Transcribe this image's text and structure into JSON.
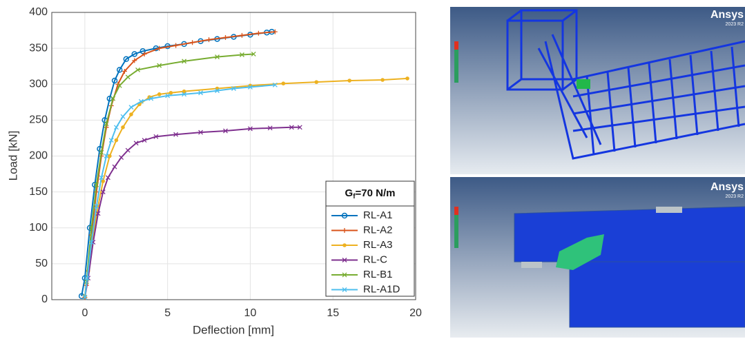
{
  "chart_data": {
    "type": "line",
    "x_label": "Deflection [mm]",
    "y_label": "Load [kN]",
    "xlim": [
      -2,
      20
    ],
    "xticks": [
      0,
      5,
      10,
      15,
      20
    ],
    "ylim": [
      0,
      400
    ],
    "yticks": [
      0,
      50,
      100,
      150,
      200,
      250,
      300,
      350,
      400
    ],
    "grid": true,
    "legend_position": "lower right",
    "legend_title": {
      "main": "G",
      "sub": "f",
      "rest": "=70 N/m"
    },
    "series": [
      {
        "name": "RL-A1",
        "color": "#0072bd",
        "marker": "circle",
        "x": [
          -0.2,
          0.0,
          0.3,
          0.6,
          0.9,
          1.2,
          1.5,
          1.8,
          2.1,
          2.5,
          3.0,
          3.5,
          4.3,
          5,
          6,
          7,
          8,
          9,
          10,
          11,
          11.3
        ],
        "values": [
          5,
          30,
          100,
          160,
          210,
          250,
          280,
          305,
          320,
          335,
          342,
          346,
          350,
          353,
          356,
          360,
          363,
          366,
          369,
          372,
          373
        ]
      },
      {
        "name": "RL-A2",
        "color": "#d95319",
        "marker": "plus",
        "x": [
          0,
          0.1,
          0.4,
          0.7,
          1.0,
          1.3,
          1.6,
          2.0,
          2.4,
          3.0,
          3.6,
          4.5,
          5.5,
          6.5,
          7.5,
          8.5,
          9.5,
          10.5,
          11.5
        ],
        "values": [
          3,
          20,
          90,
          150,
          200,
          240,
          270,
          300,
          318,
          333,
          342,
          350,
          354,
          358,
          362,
          365,
          368,
          371,
          373
        ]
      },
      {
        "name": "RL-A3",
        "color": "#edb120",
        "marker": "dot",
        "x": [
          0,
          0.2,
          0.5,
          0.8,
          1.1,
          1.5,
          1.9,
          2.3,
          2.8,
          3.3,
          3.9,
          4.5,
          5.2,
          6,
          8,
          10,
          12,
          14,
          16,
          18,
          19.5
        ],
        "values": [
          5,
          40,
          90,
          130,
          165,
          200,
          222,
          240,
          258,
          272,
          282,
          286,
          288,
          290,
          294,
          298,
          301,
          303,
          305,
          306,
          308
        ]
      },
      {
        "name": "RL-C",
        "color": "#7e2f8e",
        "marker": "x",
        "x": [
          0,
          0.2,
          0.5,
          0.8,
          1.1,
          1.4,
          1.8,
          2.2,
          2.6,
          3.1,
          3.6,
          4.3,
          5.5,
          7,
          8.5,
          10,
          11.2,
          12.5,
          13
        ],
        "values": [
          3,
          30,
          80,
          120,
          150,
          170,
          185,
          198,
          208,
          218,
          222,
          227,
          230,
          233,
          235,
          238,
          239,
          240,
          240
        ]
      },
      {
        "name": "RL-B1",
        "color": "#77ac30",
        "marker": "x",
        "x": [
          0,
          0.1,
          0.4,
          0.7,
          1.0,
          1.3,
          1.7,
          2.1,
          2.6,
          3.2,
          4.5,
          6,
          8,
          9.5,
          10.2
        ],
        "values": [
          3,
          25,
          100,
          160,
          205,
          245,
          280,
          298,
          310,
          320,
          326,
          332,
          338,
          341,
          342
        ]
      },
      {
        "name": "RL-A1D",
        "color": "#4dbeee",
        "marker": "x",
        "x": [
          0,
          0.15,
          0.4,
          0.7,
          1.0,
          1.3,
          1.6,
          1.9,
          2.3,
          2.8,
          3.4,
          4.0,
          5,
          6,
          7,
          8,
          9,
          10,
          11.5
        ],
        "values": [
          3,
          30,
          80,
          130,
          170,
          200,
          222,
          240,
          255,
          268,
          276,
          280,
          284,
          286,
          288,
          291,
          294,
          296,
          299
        ]
      }
    ]
  },
  "panels": [
    {
      "brand": "Ansys",
      "version": "2023 R2"
    },
    {
      "brand": "Ansys",
      "version": "2023 R2"
    }
  ]
}
